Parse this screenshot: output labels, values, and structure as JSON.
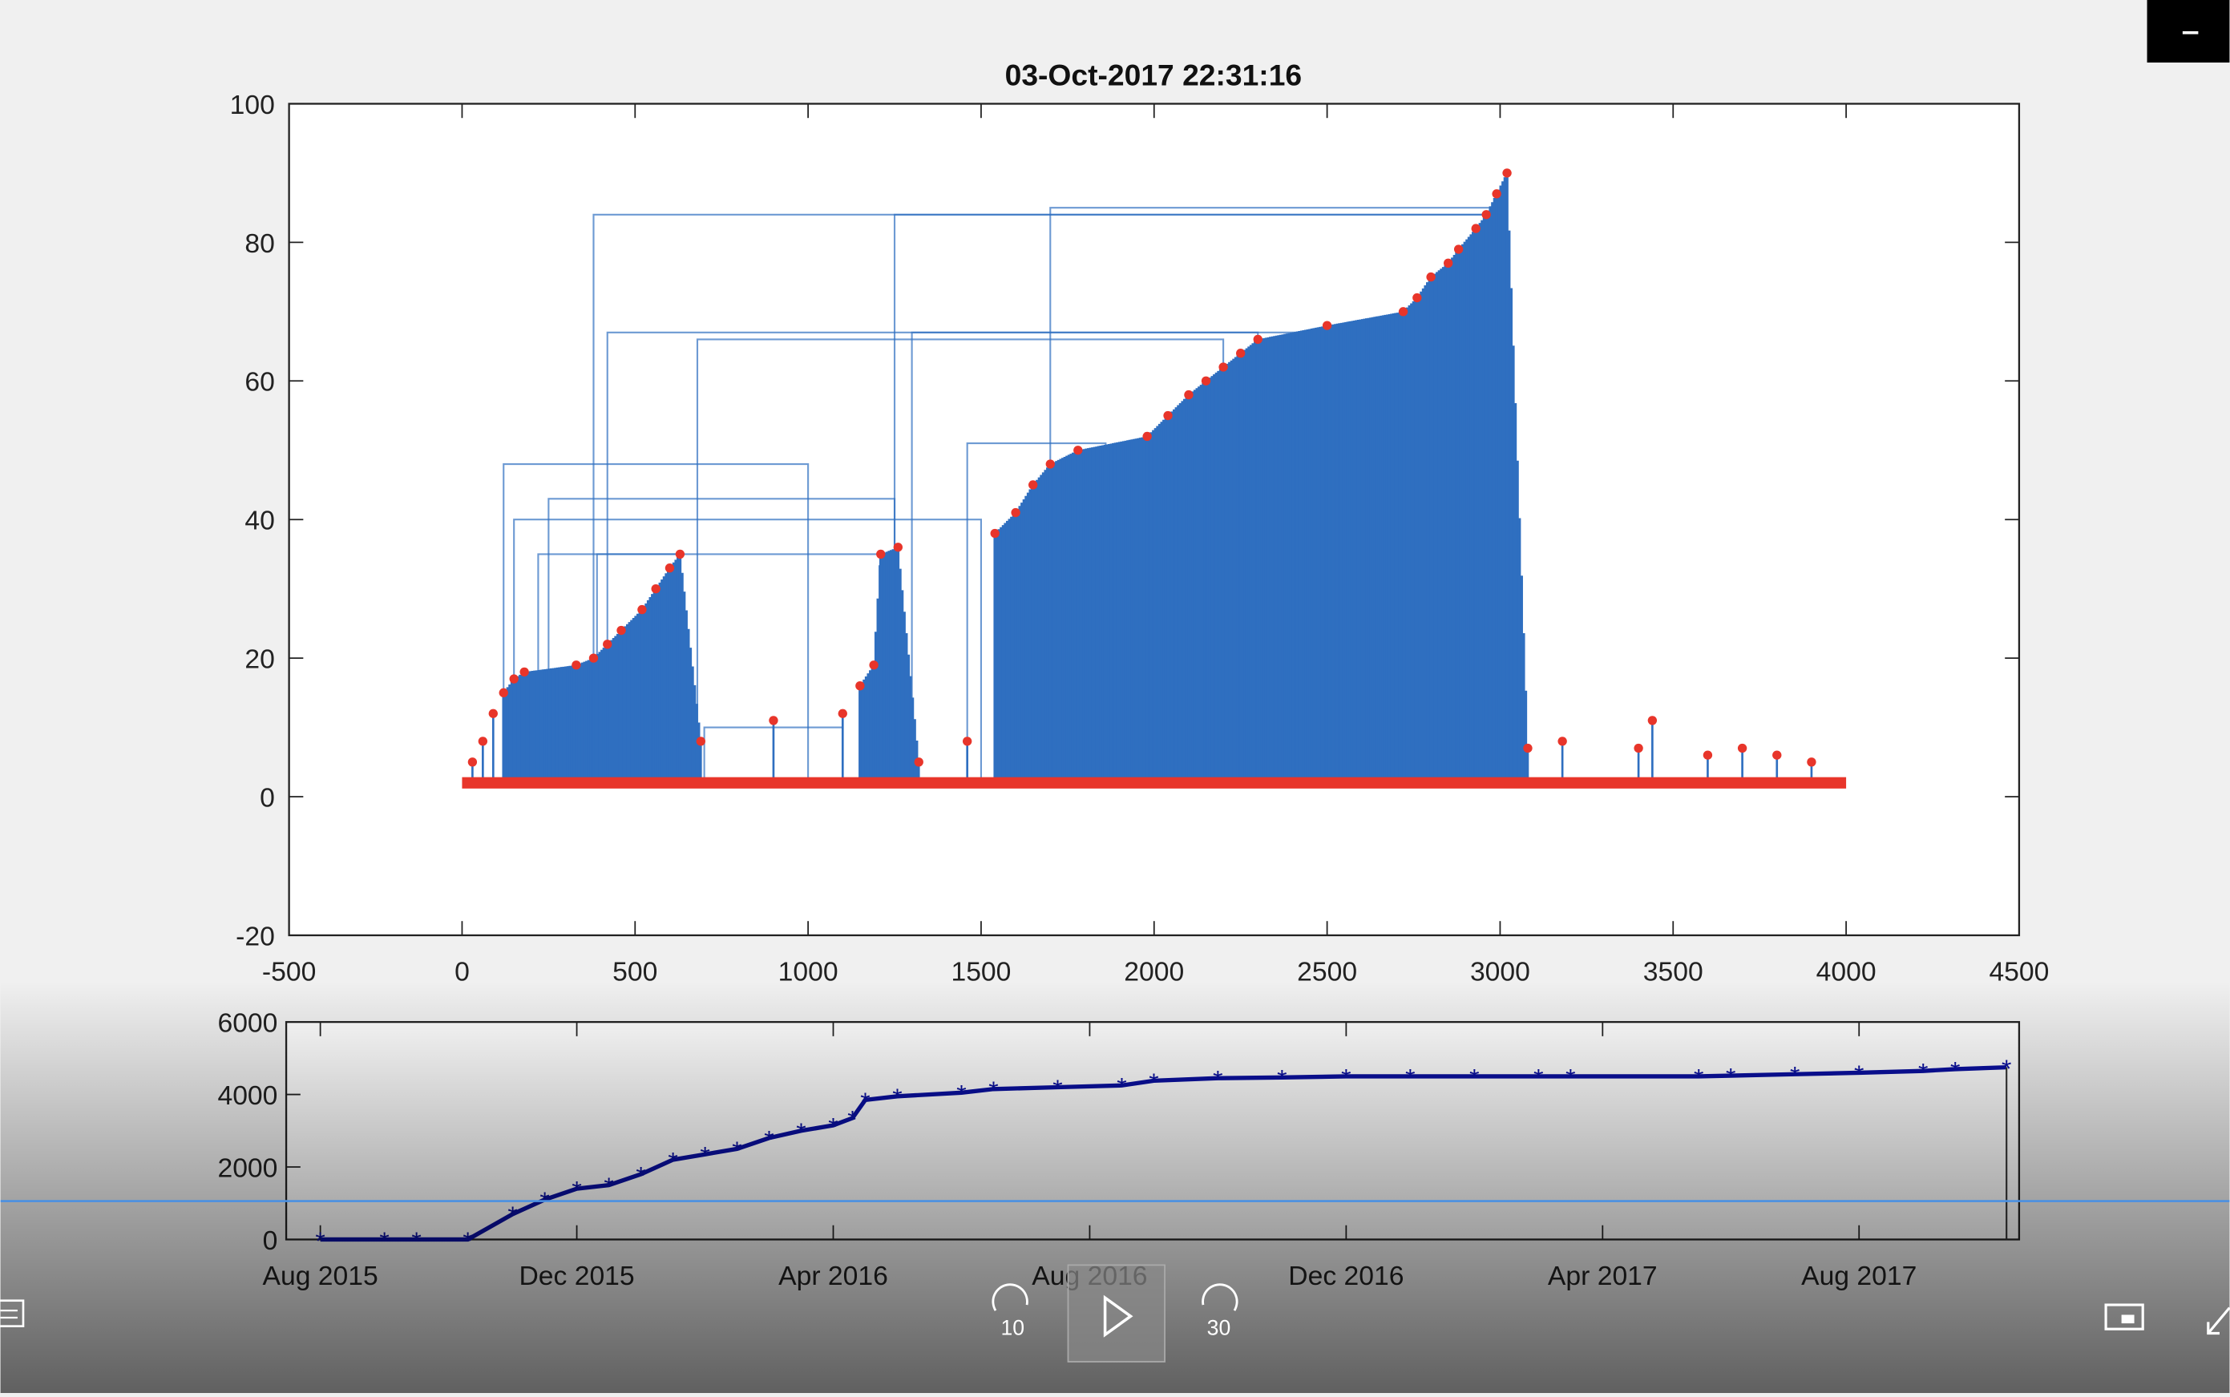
{
  "figure": {
    "title": "03-Oct-2017 22:31:16"
  },
  "player": {
    "rewind_label": "10",
    "forward_label": "30",
    "progress_fraction": 1.0,
    "icons": [
      "captions-icon",
      "rewind-10-icon",
      "play-icon",
      "forward-30-icon",
      "miniplayer-icon",
      "collapse-icon",
      "minimize-icon"
    ]
  },
  "colors": {
    "stem": "#2f6fc0",
    "marker": "#e8352a",
    "cumulative": "#0a10a0",
    "seekbar": "#4a90e2"
  },
  "chart_data": [
    {
      "type": "scatter",
      "title": "03-Oct-2017 22:31:16",
      "xlim": [
        -500,
        4500
      ],
      "ylim": [
        -20,
        100
      ],
      "xticks": [
        -500,
        0,
        500,
        1000,
        1500,
        2000,
        2500,
        3000,
        3500,
        4000,
        4500
      ],
      "yticks": [
        -20,
        0,
        20,
        40,
        60,
        80,
        100
      ],
      "baseline": 2,
      "baseline_range": [
        0,
        4000
      ],
      "markers": [
        [
          30,
          5
        ],
        [
          60,
          8
        ],
        [
          90,
          12
        ],
        [
          120,
          15
        ],
        [
          150,
          17
        ],
        [
          180,
          18
        ],
        [
          330,
          19
        ],
        [
          380,
          20
        ],
        [
          420,
          22
        ],
        [
          460,
          24
        ],
        [
          520,
          27
        ],
        [
          560,
          30
        ],
        [
          600,
          33
        ],
        [
          630,
          35
        ],
        [
          690,
          8
        ],
        [
          900,
          11
        ],
        [
          1100,
          12
        ],
        [
          1150,
          16
        ],
        [
          1190,
          19
        ],
        [
          1210,
          35
        ],
        [
          1260,
          36
        ],
        [
          1320,
          5
        ],
        [
          1460,
          8
        ],
        [
          1540,
          38
        ],
        [
          1600,
          41
        ],
        [
          1650,
          45
        ],
        [
          1700,
          48
        ],
        [
          1780,
          50
        ],
        [
          1980,
          52
        ],
        [
          2040,
          55
        ],
        [
          2100,
          58
        ],
        [
          2150,
          60
        ],
        [
          2200,
          62
        ],
        [
          2250,
          64
        ],
        [
          2300,
          66
        ],
        [
          2500,
          68
        ],
        [
          2720,
          70
        ],
        [
          2760,
          72
        ],
        [
          2800,
          75
        ],
        [
          2850,
          77
        ],
        [
          2880,
          79
        ],
        [
          2930,
          82
        ],
        [
          2960,
          84
        ],
        [
          2990,
          87
        ],
        [
          3020,
          90
        ],
        [
          3080,
          7
        ],
        [
          3180,
          8
        ],
        [
          3400,
          7
        ],
        [
          3440,
          11
        ],
        [
          3600,
          6
        ],
        [
          3700,
          7
        ],
        [
          3800,
          6
        ],
        [
          3900,
          5
        ]
      ],
      "links": [
        [
          380,
          2960,
          84
        ],
        [
          1250,
          2960,
          84
        ],
        [
          1700,
          2970,
          85
        ],
        [
          420,
          2990,
          67
        ],
        [
          680,
          2200,
          66
        ],
        [
          1300,
          2300,
          67
        ],
        [
          120,
          1000,
          48
        ],
        [
          1460,
          1860,
          51
        ],
        [
          250,
          1250,
          43
        ],
        [
          150,
          1500,
          40
        ],
        [
          220,
          630,
          35
        ],
        [
          390,
          1210,
          35
        ],
        [
          700,
          1100,
          10
        ]
      ]
    },
    {
      "type": "line",
      "marker": "*",
      "xlabel": "",
      "ylabel": "",
      "ylim": [
        0,
        6000
      ],
      "yticks": [
        0,
        2000,
        4000,
        6000
      ],
      "xticks": [
        "Aug 2015",
        "Dec 2015",
        "Apr 2016",
        "Aug 2016",
        "Dec 2016",
        "Apr 2017",
        "Aug 2017"
      ],
      "x_unit": "months since Aug 2015",
      "x": [
        0,
        1,
        1.5,
        2.3,
        3,
        3.5,
        4,
        4.5,
        5,
        5.5,
        6,
        6.5,
        7,
        7.5,
        8,
        8.3,
        8.5,
        9,
        10,
        10.5,
        11.5,
        12.5,
        13,
        14,
        15,
        16,
        17,
        18,
        19,
        19.5,
        21.5,
        22,
        23,
        24,
        25,
        25.5,
        26.3
      ],
      "y": [
        0,
        0,
        0,
        0,
        700,
        1100,
        1400,
        1500,
        1800,
        2200,
        2350,
        2500,
        2800,
        3000,
        3150,
        3350,
        3850,
        3950,
        4050,
        4150,
        4200,
        4250,
        4380,
        4450,
        4470,
        4500,
        4500,
        4500,
        4500,
        4500,
        4500,
        4520,
        4560,
        4600,
        4650,
        4700,
        4750
      ],
      "cursor_x": 26.3
    }
  ]
}
